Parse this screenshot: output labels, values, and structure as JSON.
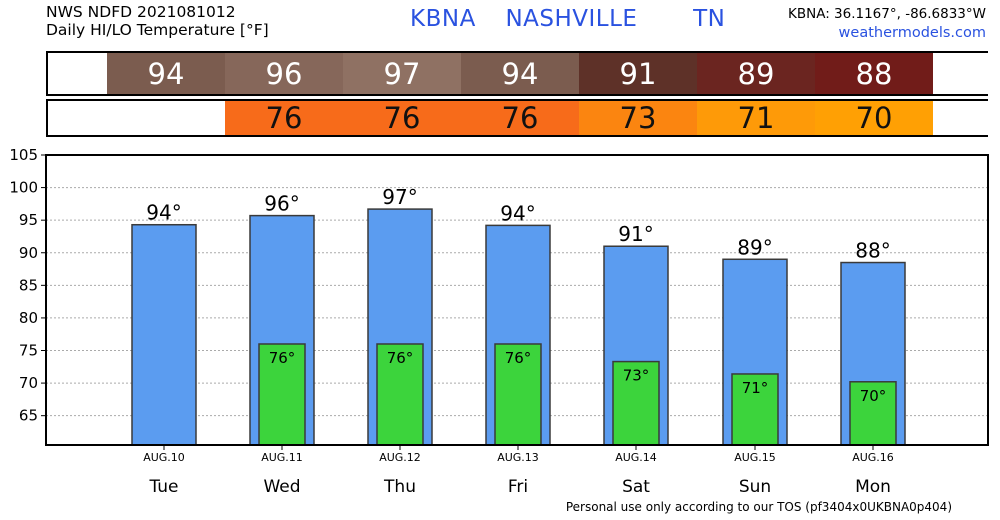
{
  "header": {
    "line1": "NWS NDFD 2021081012",
    "line2": "Daily HI/LO Temperature [°F]",
    "station_code": "KBNA",
    "station_name": "NASHVILLE",
    "state": "TN",
    "coords": "KBNA: 36.1167°, -86.6833°W",
    "site": "weathermodels.com"
  },
  "footer": "Personal use only according to our TOS (pf3404x0UKBNA0p404)",
  "strips": {
    "high": [
      {
        "value": "",
        "color": "#ffffff"
      },
      {
        "value": "94",
        "color": "#7b5c4f"
      },
      {
        "value": "96",
        "color": "#86675a"
      },
      {
        "value": "97",
        "color": "#8f7163"
      },
      {
        "value": "94",
        "color": "#7b5c4f"
      },
      {
        "value": "91",
        "color": "#5e3128"
      },
      {
        "value": "89",
        "color": "#6b2520"
      },
      {
        "value": "88",
        "color": "#711c19"
      },
      {
        "value": "",
        "color": "#ffffff"
      }
    ],
    "low": [
      {
        "value": "",
        "color": "#ffffff"
      },
      {
        "value": "",
        "color": "#ffffff"
      },
      {
        "value": "76",
        "color": "#f76b1a"
      },
      {
        "value": "76",
        "color": "#f76b1a"
      },
      {
        "value": "76",
        "color": "#f76b1a"
      },
      {
        "value": "73",
        "color": "#fb8510"
      },
      {
        "value": "71",
        "color": "#fe9a08"
      },
      {
        "value": "70",
        "color": "#ffa004"
      },
      {
        "value": "",
        "color": "#ffffff"
      }
    ]
  },
  "chart_data": {
    "type": "bar",
    "categories": [
      "Tue",
      "Wed",
      "Thu",
      "Fri",
      "Sat",
      "Sun",
      "Mon"
    ],
    "dates": [
      "AUG.10",
      "AUG.11",
      "AUG.12",
      "AUG.13",
      "AUG.14",
      "AUG.15",
      "AUG.16"
    ],
    "series": [
      {
        "values": [
          94.3,
          95.7,
          96.7,
          94.2,
          91.0,
          89.0,
          88.5
        ],
        "labels": [
          "94°",
          "96°",
          "97°",
          "94°",
          "91°",
          "89°",
          "88°"
        ],
        "color": "#5b9cf0"
      },
      {
        "values": [
          null,
          76.0,
          76.0,
          76.0,
          73.3,
          71.4,
          70.2
        ],
        "labels": [
          "",
          "76°",
          "76°",
          "76°",
          "73°",
          "71°",
          "70°"
        ],
        "color": "#3cd43c"
      }
    ],
    "ylim": [
      60.5,
      105
    ],
    "yticks": [
      65,
      70,
      75,
      80,
      85,
      90,
      95,
      100,
      105
    ],
    "grid": true
  }
}
